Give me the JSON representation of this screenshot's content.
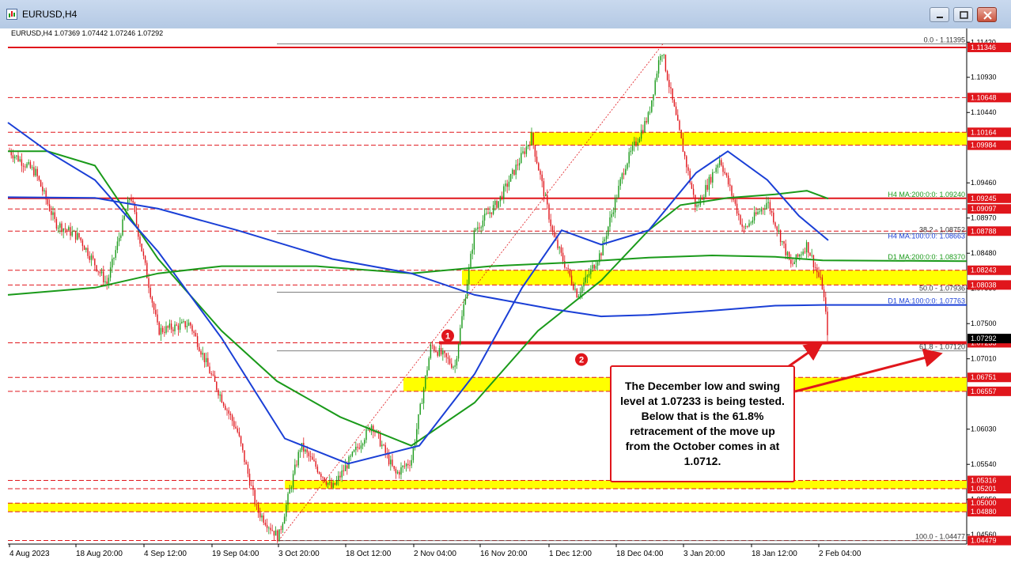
{
  "window": {
    "title": "EURUSD,H4",
    "buttons": [
      "minimize",
      "restore",
      "close"
    ]
  },
  "chart_data": {
    "type": "candlestick",
    "symbol_header": "EURUSD,H4  1.07369 1.07442 1.07246 1.07292",
    "x_tick_labels": [
      "4 Aug 2023",
      "18 Aug 20:00",
      "4 Sep 12:00",
      "19 Sep 04:00",
      "3 Oct 20:00",
      "18 Oct 12:00",
      "2 Nov 04:00",
      "16 Nov 20:00",
      "1 Dec 12:00",
      "18 Dec 04:00",
      "3 Jan 20:00",
      "18 Jan 12:00",
      "2 Feb 04:00"
    ],
    "y_tick_labels": [
      1.1142,
      1.1093,
      1.1044,
      1.0946,
      1.0897,
      1.0848,
      1.0799,
      1.075,
      1.0701,
      1.0603,
      1.0554,
      1.0505,
      1.0456
    ],
    "ylim": [
      1.0443,
      1.1161
    ],
    "price_levels": [
      {
        "value": 1.11346,
        "label": "1.11346",
        "style": "red-solid"
      },
      {
        "value": 1.10648,
        "label": "1.10648",
        "style": "red-dashed"
      },
      {
        "value": 1.10164,
        "label": "1.10164",
        "style": "red-dashed"
      },
      {
        "value": 1.09984,
        "label": "1.09984",
        "style": "red-dashed"
      },
      {
        "value": 1.09245,
        "label": "1.09245",
        "style": "red-solid"
      },
      {
        "value": 1.09097,
        "label": "1.09097",
        "style": "red-dashed"
      },
      {
        "value": 1.08788,
        "label": "1.08788",
        "style": "red-dashed"
      },
      {
        "value": 1.08243,
        "label": "1.08243",
        "style": "red-dashed"
      },
      {
        "value": 1.08038,
        "label": "1.08038",
        "style": "red-dashed"
      },
      {
        "value": 1.07233,
        "label": "1.07233",
        "style": "red-dashed"
      },
      {
        "value": 1.06751,
        "label": "1.06751",
        "style": "red-dashed"
      },
      {
        "value": 1.06557,
        "label": "1.06557",
        "style": "red-dashed"
      },
      {
        "value": 1.05316,
        "label": "1.05316",
        "style": "red-dashed"
      },
      {
        "value": 1.05201,
        "label": "1.05201",
        "style": "red-dashed"
      },
      {
        "value": 1.05,
        "label": "1.05000",
        "style": "red-dashed"
      },
      {
        "value": 1.0488,
        "label": "1.04880",
        "style": "red-dashed"
      },
      {
        "value": 1.04479,
        "label": "1.04479",
        "style": "red-dashed"
      }
    ],
    "current_price": {
      "value": 1.07292,
      "label": "1.07292"
    },
    "fibonacci": [
      {
        "level": "0.0",
        "value": 1.11395,
        "label": "0.0 - 1.11395"
      },
      {
        "level": "38.2",
        "value": 1.08752,
        "label": "38.2 - 1.08752"
      },
      {
        "level": "50.0",
        "value": 1.07936,
        "label": "50.0 - 1.07936"
      },
      {
        "level": "61.8",
        "value": 1.0712,
        "label": "61.8 - 1.07120"
      },
      {
        "level": "100.0",
        "value": 1.04477,
        "label": "100.0 - 1.04477"
      }
    ],
    "moving_averages": [
      {
        "name": "H4 MA:200:0:0: 1.09240",
        "value": 1.0924,
        "color": "#1a9a1a"
      },
      {
        "name": "H4 MA:100:0:0: 1.08663",
        "value": 1.08663,
        "color": "#1a3fd6"
      },
      {
        "name": "D1 MA:200:0:0: 1.08370",
        "value": 1.0837,
        "color": "#1a9a1a"
      },
      {
        "name": "D1 MA:100:0:0: 1.07763",
        "value": 1.07763,
        "color": "#1a3fd6"
      }
    ],
    "support_resistance_zones": [
      {
        "from": 1.09984,
        "to": 1.10164
      },
      {
        "from": 1.08038,
        "to": 1.08243
      },
      {
        "from": 1.06557,
        "to": 1.06751
      },
      {
        "from": 1.05201,
        "to": 1.05316
      },
      {
        "from": 1.0488,
        "to": 1.05
      }
    ],
    "markers": [
      "1",
      "2"
    ],
    "colors": {
      "up_candle": "#1a9a1a",
      "down_candle": "#e0161c",
      "level_line": "#e0161c",
      "zone": "#ffff00",
      "ma_blue": "#1a3fd6",
      "ma_green": "#1a9a1a"
    }
  },
  "annotation": {
    "text": "The December low and swing level at 1.07233 is being tested. Below that is the 61.8% retracement of the move up from the October comes in at 1.0712."
  }
}
